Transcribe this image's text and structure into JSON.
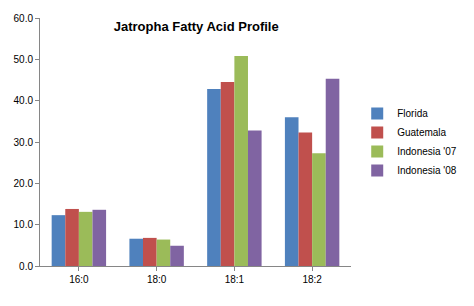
{
  "chart_data": {
    "type": "bar",
    "title": "Jatropha Fatty Acid Profile",
    "categories": [
      "16:0",
      "18:0",
      "18:1",
      "18:2"
    ],
    "series": [
      {
        "name": "Florida",
        "color": "#4F81BD",
        "values": [
          12.3,
          6.6,
          42.8,
          36.0
        ]
      },
      {
        "name": "Guatemala",
        "color": "#C0504D",
        "values": [
          13.8,
          6.8,
          44.5,
          32.3
        ]
      },
      {
        "name": "Indonesia '07",
        "color": "#9BBB59",
        "values": [
          13.1,
          6.4,
          50.8,
          27.3
        ]
      },
      {
        "name": "Indonesia '08",
        "color": "#8064A2",
        "values": [
          13.6,
          4.9,
          32.8,
          45.3
        ]
      }
    ],
    "ylim": [
      0,
      60
    ],
    "yticks": [
      {
        "value": 0,
        "label": "0.0"
      },
      {
        "value": 10,
        "label": "10.0"
      },
      {
        "value": 20,
        "label": "20.0"
      },
      {
        "value": 30,
        "label": "30.0"
      },
      {
        "value": 40,
        "label": "40.0"
      },
      {
        "value": 50,
        "label": "50.0"
      },
      {
        "value": 60,
        "label": "60.0"
      }
    ],
    "grid": false,
    "legend": "right"
  }
}
